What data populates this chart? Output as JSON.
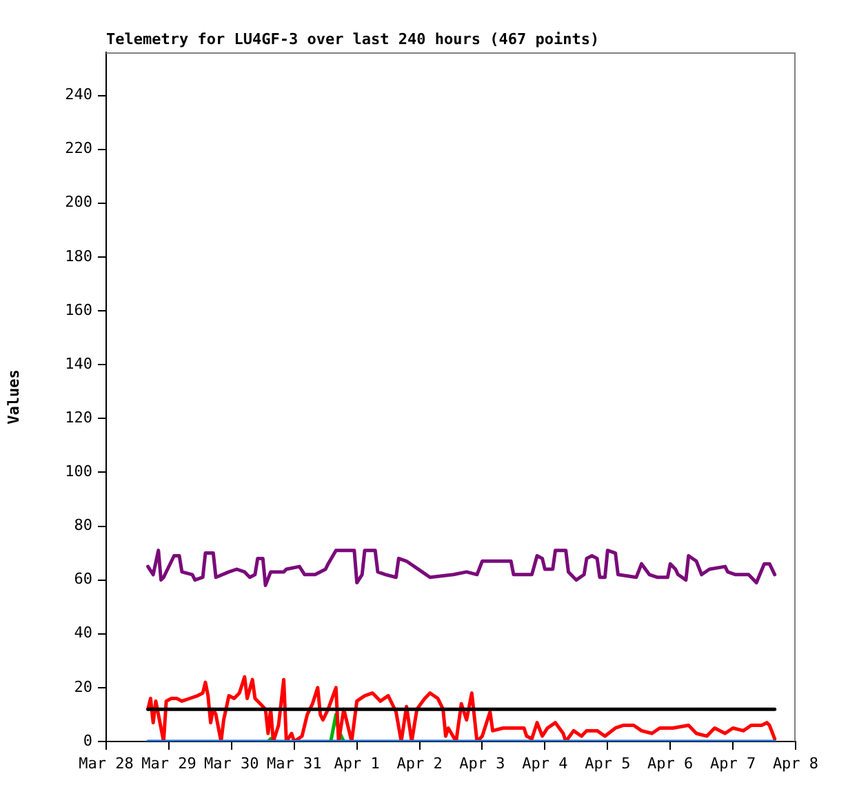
{
  "chart_data": {
    "type": "line",
    "title": "Telemetry for LU4GF-3 over last 240 hours (467 points)",
    "ylabel": "Values",
    "xlim": [
      "--03-28",
      "--04-08"
    ],
    "xticks": [
      {
        "value": "--03-28",
        "label": "Mar 28"
      },
      {
        "value": "--03-29",
        "label": "Mar 29"
      },
      {
        "value": "--03-30",
        "label": "Mar 30"
      },
      {
        "value": "--03-31",
        "label": "Mar 31"
      },
      {
        "value": "--04-01",
        "label": "Apr 1"
      },
      {
        "value": "--04-02",
        "label": "Apr 2"
      },
      {
        "value": "--04-03",
        "label": "Apr 3"
      },
      {
        "value": "--04-04",
        "label": "Apr 4"
      },
      {
        "value": "--04-05",
        "label": "Apr 5"
      },
      {
        "value": "--04-06",
        "label": "Apr 6"
      },
      {
        "value": "--04-07",
        "label": "Apr 7"
      },
      {
        "value": "--04-08",
        "label": "Apr 8"
      }
    ],
    "ylim": [
      0,
      256
    ],
    "yticks": [
      0,
      20,
      40,
      60,
      80,
      100,
      120,
      140,
      160,
      180,
      200,
      220,
      240
    ],
    "grid": false,
    "legend": false,
    "series": [
      {
        "color": "#7a0a7a",
        "x": [
          "--03-28T16:00",
          "--03-28T18:00",
          "--03-28T20:00",
          "--03-28T21:00",
          "--03-28T22:00",
          "--03-29T02:00",
          "--03-29T04:00",
          "--03-29T05:00",
          "--03-29T09:00",
          "--03-29T10:00",
          "--03-29T13:00",
          "--03-29T14:00",
          "--03-29T17:00",
          "--03-29T18:00",
          "--03-29T23:00",
          "--03-30T02:00",
          "--03-30T05:00",
          "--03-30T07:00",
          "--03-30T09:00",
          "--03-30T10:00",
          "--03-30T12:00",
          "--03-30T13:00",
          "--03-30T15:00",
          "--03-30T20:00",
          "--03-30T21:00",
          "--03-31T02:00",
          "--03-31T04:00",
          "--03-31T08:00",
          "--03-31T12:00",
          "--03-31T13:00",
          "--03-31T16:00",
          "--03-31T23:00",
          "--04-01T00:00",
          "--04-01T02:00",
          "--04-01T03:00",
          "--04-01T07:00",
          "--04-01T08:00",
          "--04-01T11:00",
          "--04-01T15:00",
          "--04-01T16:00",
          "--04-01T19:00",
          "--04-02T01:00",
          "--04-02T04:00",
          "--04-02T13:00",
          "--04-02T18:00",
          "--04-02T22:00",
          "--04-03T00:00",
          "--04-03T11:00",
          "--04-03T12:00",
          "--04-03T19:00",
          "--04-03T21:00",
          "--04-03T23:00",
          "--04-04T00:00",
          "--04-04T03:00",
          "--04-04T04:00",
          "--04-04T08:00",
          "--04-04T09:00",
          "--04-04T12:00",
          "--04-04T15:00",
          "--04-04T16:00",
          "--04-04T18:00",
          "--04-04T20:00",
          "--04-04T21:00",
          "--04-04T23:00",
          "--04-05T00:00",
          "--04-05T03:00",
          "--04-05T04:00",
          "--04-05T11:00",
          "--04-05T13:00",
          "--04-05T16:00",
          "--04-05T19:00",
          "--04-05T23:00",
          "--04-06T00:00",
          "--04-06T02:00",
          "--04-06T03:00",
          "--04-06T06:00",
          "--04-06T07:00",
          "--04-06T10:00",
          "--04-06T12:00",
          "--04-06T15:00",
          "--04-06T21:00",
          "--04-06T22:00",
          "--04-07T01:00",
          "--04-07T06:00",
          "--04-07T09:00",
          "--04-07T12:00",
          "--04-07T14:00",
          "--04-07T16:00"
        ],
        "values": [
          65,
          62,
          71,
          60,
          61,
          69,
          69,
          63,
          62,
          60,
          61,
          70,
          70,
          61,
          63,
          64,
          63,
          61,
          62,
          68,
          68,
          58,
          63,
          63,
          64,
          65,
          62,
          62,
          64,
          66,
          71,
          71,
          59,
          62,
          71,
          71,
          63,
          62,
          61,
          68,
          67,
          63,
          61,
          62,
          63,
          62,
          67,
          67,
          62,
          62,
          69,
          68,
          64,
          64,
          71,
          71,
          63,
          60,
          62,
          68,
          69,
          68,
          61,
          61,
          71,
          70,
          62,
          61,
          66,
          62,
          61,
          61,
          66,
          64,
          62,
          60,
          69,
          67,
          62,
          64,
          65,
          63,
          62,
          62,
          59,
          66,
          66,
          62
        ]
      },
      {
        "color": "#000000",
        "x": [
          "--03-28T16:00",
          "--04-07T16:00"
        ],
        "values": [
          12,
          12
        ]
      },
      {
        "color": "#1a6fd0",
        "x": [
          "--03-28T16:00",
          "--04-07T16:00"
        ],
        "values": [
          0,
          0
        ]
      },
      {
        "color": "#ff0000",
        "x": [
          "--03-28T16:00",
          "--03-28T17:00",
          "--03-28T18:00",
          "--03-28T19:00",
          "--03-28T21:00",
          "--03-28T22:00",
          "--03-28T23:00",
          "--03-29T01:00",
          "--03-29T03:00",
          "--03-29T05:00",
          "--03-29T08:00",
          "--03-29T11:00",
          "--03-29T13:00",
          "--03-29T14:00",
          "--03-29T15:00",
          "--03-29T16:00",
          "--03-29T17:00",
          "--03-29T18:00",
          "--03-29T20:00",
          "--03-29T21:00",
          "--03-29T23:00",
          "--03-30T01:00",
          "--03-30T03:00",
          "--03-30T05:00",
          "--03-30T06:00",
          "--03-30T08:00",
          "--03-30T09:00",
          "--03-30T11:00",
          "--03-30T13:00",
          "--03-30T14:00",
          "--03-30T15:00",
          "--03-30T16:00",
          "--03-30T18:00",
          "--03-30T20:00",
          "--03-30T21:00",
          "--03-30T23:00",
          "--03-31T00:00",
          "--03-31T03:00",
          "--03-31T05:00",
          "--03-31T07:00",
          "--03-31T09:00",
          "--03-31T10:00",
          "--03-31T11:00",
          "--03-31T13:00",
          "--03-31T16:00",
          "--03-31T17:00",
          "--03-31T19:00",
          "--03-31T22:00",
          "--04-01T00:00",
          "--04-01T03:00",
          "--04-01T06:00",
          "--04-01T09:00",
          "--04-01T12:00",
          "--04-01T15:00",
          "--04-01T17:00",
          "--04-01T19:00",
          "--04-01T21:00",
          "--04-01T23:00",
          "--04-02T02:00",
          "--04-02T04:00",
          "--04-02T07:00",
          "--04-02T09:00",
          "--04-02T10:00",
          "--04-02T11:00",
          "--04-02T14:00",
          "--04-02T16:00",
          "--04-02T18:00",
          "--04-02T20:00",
          "--04-02T22:00",
          "--04-03T00:00",
          "--04-03T02:00",
          "--04-03T03:00",
          "--04-03T04:00",
          "--04-03T08:00",
          "--04-03T13:00",
          "--04-03T16:00",
          "--04-03T17:00",
          "--04-03T19:00",
          "--04-03T21:00",
          "--04-03T23:00",
          "--04-04T01:00",
          "--04-04T04:00",
          "--04-04T07:00",
          "--04-04T08:00",
          "--04-04T11:00",
          "--04-04T14:00",
          "--04-04T16:00",
          "--04-04T20:00",
          "--04-04T23:00",
          "--04-05T03:00",
          "--04-05T06:00",
          "--04-05T10:00",
          "--04-05T13:00",
          "--04-05T17:00",
          "--04-05T20:00",
          "--04-06T01:00",
          "--04-06T07:00",
          "--04-06T10:00",
          "--04-06T14:00",
          "--04-06T17:00",
          "--04-06T21:00",
          "--04-07T00:00",
          "--04-07T04:00",
          "--04-07T07:00",
          "--04-07T11:00",
          "--04-07T13:00",
          "--04-07T14:00",
          "--04-07T16:00"
        ],
        "values": [
          12,
          16,
          7,
          15,
          5,
          0,
          15,
          16,
          16,
          15,
          16,
          17,
          18,
          22,
          17,
          7,
          12,
          10,
          0,
          8,
          17,
          16,
          18,
          24,
          16,
          23,
          16,
          14,
          12,
          3,
          12,
          0,
          6,
          23,
          0,
          3,
          0,
          2,
          10,
          14,
          20,
          10,
          8,
          12,
          20,
          0,
          12,
          0,
          15,
          17,
          18,
          15,
          17,
          11,
          0,
          13,
          0,
          12,
          16,
          18,
          16,
          12,
          2,
          5,
          0,
          14,
          8,
          18,
          0,
          2,
          8,
          11,
          4,
          5,
          5,
          5,
          2,
          1,
          7,
          2,
          5,
          7,
          3,
          0,
          4,
          2,
          4,
          4,
          2,
          5,
          6,
          6,
          4,
          3,
          5,
          5,
          6,
          3,
          2,
          5,
          3,
          5,
          4,
          6,
          6,
          7,
          6,
          1
        ]
      },
      {
        "color": "#00b000",
        "x": [
          "--03-30T14:00",
          "--03-30T15:00",
          "--03-30T17:00",
          "--03-31T00:00",
          "--03-31T14:00",
          "--03-31T16:00",
          "--03-31T17:00",
          "--03-31T18:00",
          "--03-31T19:00"
        ],
        "values": [
          0,
          1,
          0,
          null,
          0,
          10,
          4,
          2,
          0
        ]
      }
    ]
  }
}
